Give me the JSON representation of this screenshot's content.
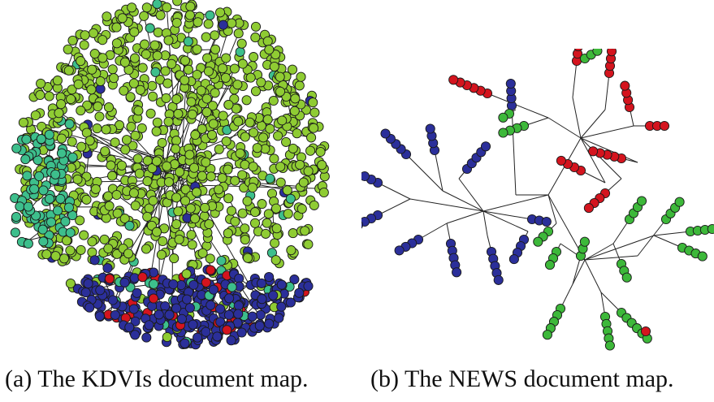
{
  "colors": {
    "light_green": "#8fcc33",
    "teal": "#3dbf8c",
    "blue": "#2b2f9a",
    "red": "#d4141e",
    "green": "#3db83a",
    "edge": "#222222",
    "node_stroke": "#1a1a1a"
  },
  "panel_a": {
    "caption": "(a)  The KDVIs document map."
  },
  "panel_b": {
    "caption": "(b)  The NEWS document map."
  }
}
